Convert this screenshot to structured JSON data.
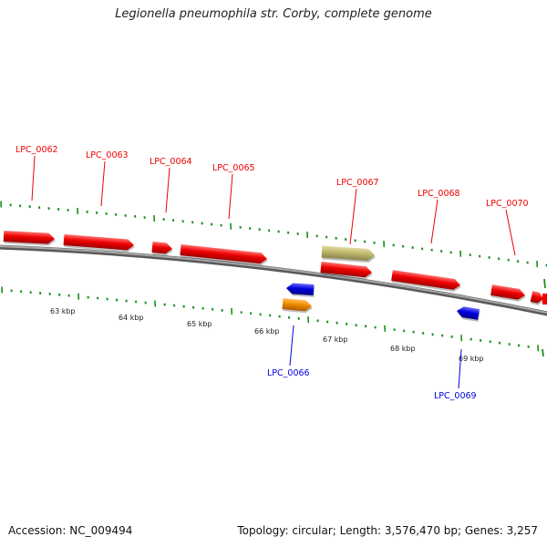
{
  "title": "Legionella pneumophila str. Corby, complete genome",
  "footer": {
    "accession": "Accession: NC_009494",
    "summary": "Topology: circular; Length: 3,576,470 bp; Genes: 3,257"
  },
  "colors": {
    "forward_gene": "#ee0000",
    "reverse_gene": "#0000dd",
    "other_feature": "#f08c00",
    "khaki_feature": "#bdb76b",
    "backbone": "#777777",
    "ticks": "#1a8f1a"
  },
  "scale_labels": [
    "63 kbp",
    "64 kbp",
    "65 kbp",
    "66 kbp",
    "67 kbp",
    "68 kbp",
    "69 kbp"
  ],
  "genes": [
    {
      "label": "LPC_0062",
      "strand": "forward"
    },
    {
      "label": "LPC_0063",
      "strand": "forward"
    },
    {
      "label": "LPC_0064",
      "strand": "forward"
    },
    {
      "label": "LPC_0065",
      "strand": "forward"
    },
    {
      "label": "LPC_0066",
      "strand": "reverse"
    },
    {
      "label": "LPC_0067",
      "strand": "forward"
    },
    {
      "label": "LPC_0068",
      "strand": "forward"
    },
    {
      "label": "LPC_0069",
      "strand": "reverse"
    },
    {
      "label": "LPC_0070",
      "strand": "forward"
    }
  ]
}
